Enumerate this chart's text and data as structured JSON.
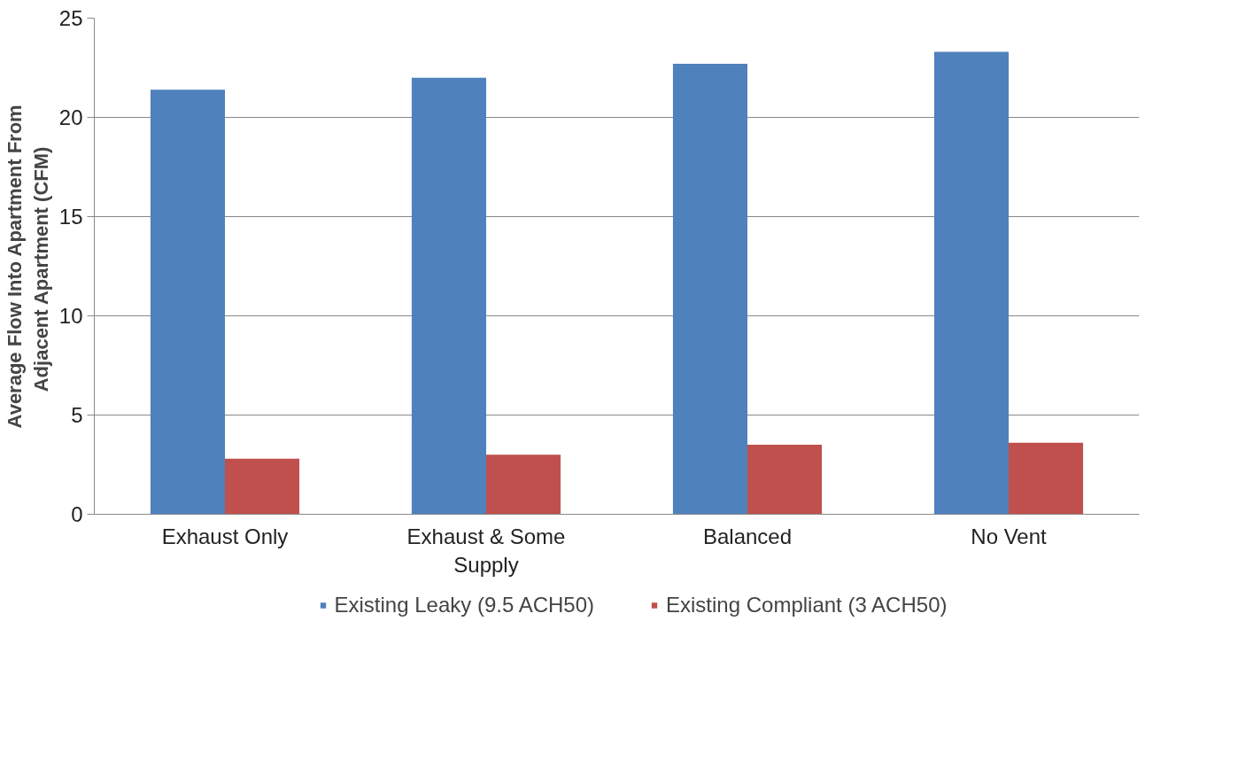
{
  "chart_data": {
    "type": "bar",
    "ylabel": "Average Flow Into Apartment From Adjacent Apartment  (CFM)",
    "categories": [
      "Exhaust Only",
      "Exhaust & Some Supply",
      "Balanced",
      "No Vent"
    ],
    "series": [
      {
        "name": "Existing Leaky (9.5 ACH50)",
        "color": "#4f81bd",
        "values": [
          21.4,
          22.0,
          22.7,
          23.3
        ]
      },
      {
        "name": "Existing Compliant (3 ACH50)",
        "color": "#c0504d",
        "values": [
          2.8,
          3.0,
          3.5,
          3.6
        ]
      }
    ],
    "ylim": [
      0,
      25
    ],
    "yticks": [
      0,
      5,
      10,
      15,
      20,
      25
    ],
    "grid": "y",
    "legend": "bottom"
  }
}
